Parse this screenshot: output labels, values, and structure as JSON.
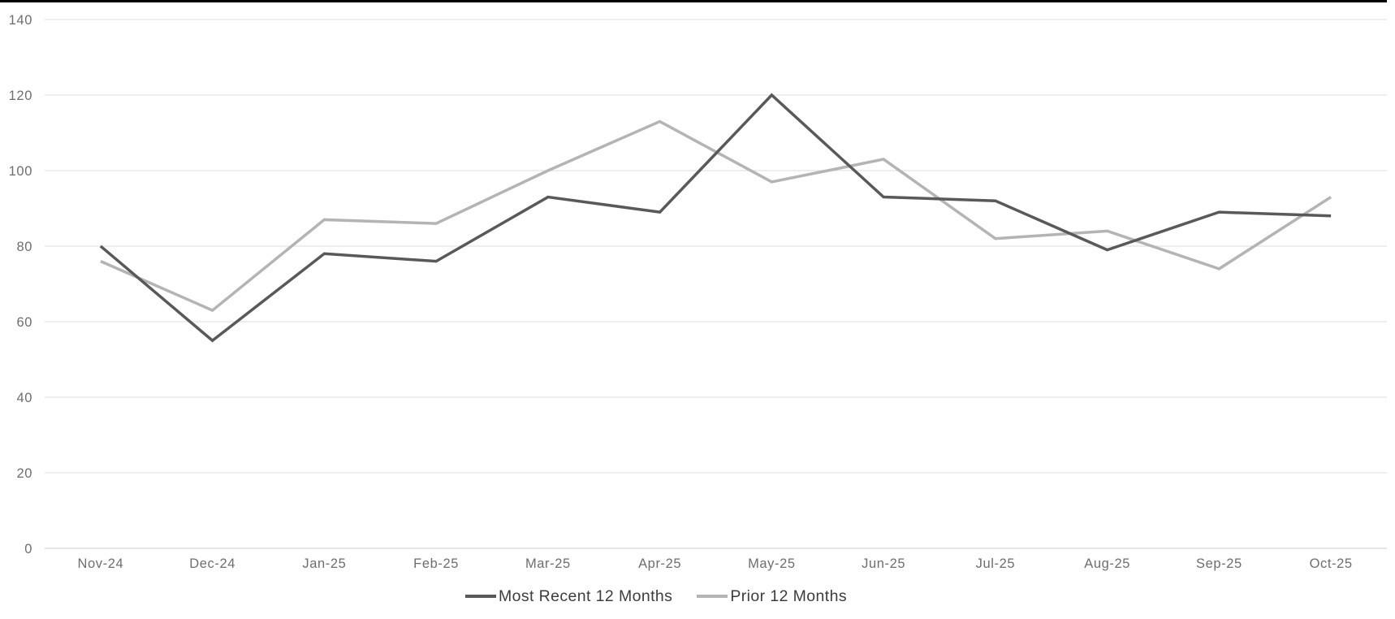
{
  "chart_data": {
    "type": "line",
    "title": "",
    "xlabel": "",
    "ylabel": "",
    "categories": [
      "Nov-24",
      "Dec-24",
      "Jan-25",
      "Feb-25",
      "Mar-25",
      "Apr-25",
      "May-25",
      "Jun-25",
      "Jul-25",
      "Aug-25",
      "Sep-25",
      "Oct-25"
    ],
    "series": [
      {
        "name": "Most Recent 12 Months",
        "color": "#595959",
        "values": [
          80,
          55,
          78,
          76,
          93,
          89,
          120,
          93,
          92,
          79,
          89,
          88
        ]
      },
      {
        "name": "Prior 12 Months",
        "color": "#b4b4b4",
        "values": [
          76,
          63,
          87,
          86,
          100,
          113,
          97,
          103,
          82,
          84,
          74,
          93
        ]
      }
    ],
    "ylim": [
      0,
      140
    ],
    "yticks": [
      0,
      20,
      40,
      60,
      80,
      100,
      120,
      140
    ],
    "grid": "horizontal",
    "legend_position": "bottom-center"
  },
  "colors": {
    "grid_line": "#e3e3e3",
    "axis_line": "#d6d6d6",
    "tick_label": "#6e6e6e",
    "legend_text": "#3d3d3d",
    "top_border": "#000000",
    "background": "#ffffff"
  }
}
